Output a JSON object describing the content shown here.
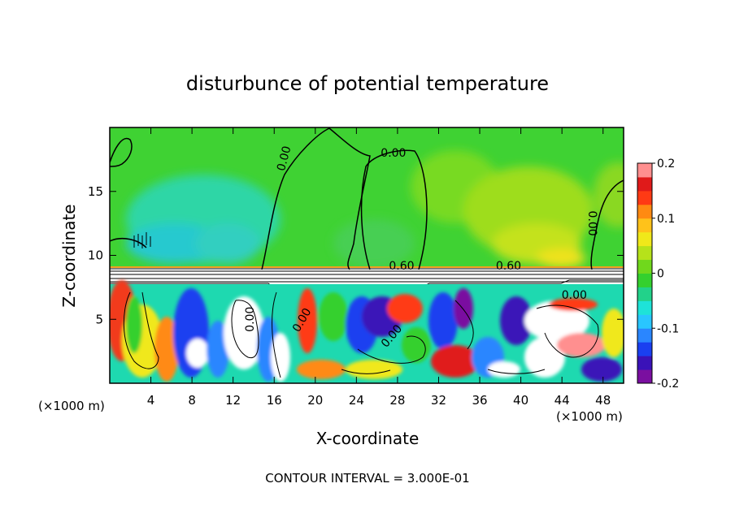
{
  "chart_data": {
    "type": "heatmap",
    "title": "disturbunce of potential temperature",
    "xlabel": "X-coordinate",
    "ylabel": "Z-coordinate",
    "x_unit_left": "(×1000 m)",
    "x_unit_right": "(×1000 m)",
    "xlim": [
      0,
      50
    ],
    "ylim": [
      0,
      20
    ],
    "x_ticks": [
      "4",
      "8",
      "12",
      "16",
      "20",
      "24",
      "28",
      "32",
      "36",
      "40",
      "44",
      "48"
    ],
    "y_ticks": [
      "5",
      "10",
      "15"
    ],
    "colorbar": {
      "ticks": [
        "0.2",
        "0.1",
        "0",
        "-0.1",
        "-0.2"
      ],
      "range": [
        -0.2,
        0.2
      ],
      "colors": [
        "#7a0fa0",
        "#3a12b8",
        "#1a3ff0",
        "#2a86ff",
        "#29c6ff",
        "#1ee3d8",
        "#22d28a",
        "#34d02e",
        "#70d81c",
        "#b6e21a",
        "#f0e81a",
        "#ffc21a",
        "#ff8a12",
        "#ff3a14",
        "#e01a1a",
        "#ff8f8f"
      ]
    },
    "contour_labels": [
      {
        "text": "0.00",
        "x": 17.3,
        "z": 17.5,
        "rotate": -75
      },
      {
        "text": "0.00",
        "x": 27.6,
        "z": 17.7,
        "rotate": 0
      },
      {
        "text": "0.00",
        "x": 46.6,
        "z": 12.5,
        "rotate": 90
      },
      {
        "text": "0.60",
        "x": 28.4,
        "z": 8.9,
        "rotate": 0
      },
      {
        "text": "0.60",
        "x": 38.8,
        "z": 8.9,
        "rotate": 0
      },
      {
        "text": "0.00",
        "x": 45.2,
        "z": 6.6,
        "rotate": 0
      },
      {
        "text": "0.00",
        "x": 14.0,
        "z": 5.0,
        "rotate": -90
      },
      {
        "text": "0.00",
        "x": 19.0,
        "z": 4.8,
        "rotate": -60
      },
      {
        "text": "0.00",
        "x": 27.7,
        "z": 3.5,
        "rotate": -50
      }
    ],
    "annotation": "CONTOUR INTERVAL = 3.000E-01",
    "grid": false
  }
}
